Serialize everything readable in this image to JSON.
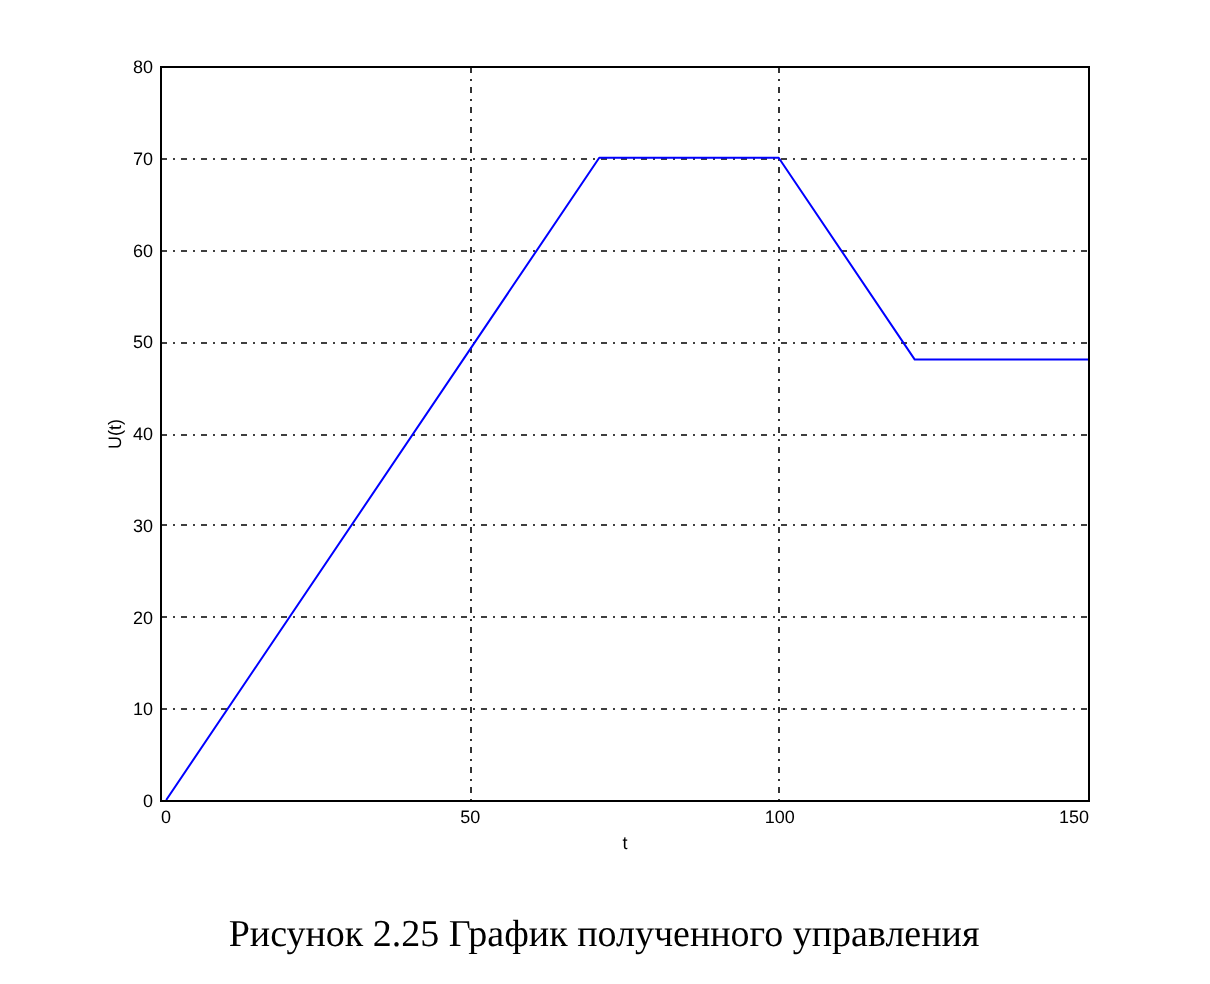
{
  "chart_data": {
    "type": "line",
    "x": [
      1,
      71,
      100,
      122,
      150
    ],
    "values": [
      0,
      70,
      70,
      48,
      48
    ],
    "color": "#0000ff",
    "line_style": "solid",
    "xlim": [
      0,
      150
    ],
    "xticks": [
      0,
      50,
      100,
      150
    ],
    "ylim": [
      0,
      80
    ],
    "yticks": [
      0,
      10,
      20,
      30,
      40,
      50,
      60,
      70,
      80
    ],
    "grid": true,
    "xlabel": "t",
    "ylabel": "U(t)",
    "annotations": [
      "Рисунок 2.25 График полученного управления"
    ]
  }
}
